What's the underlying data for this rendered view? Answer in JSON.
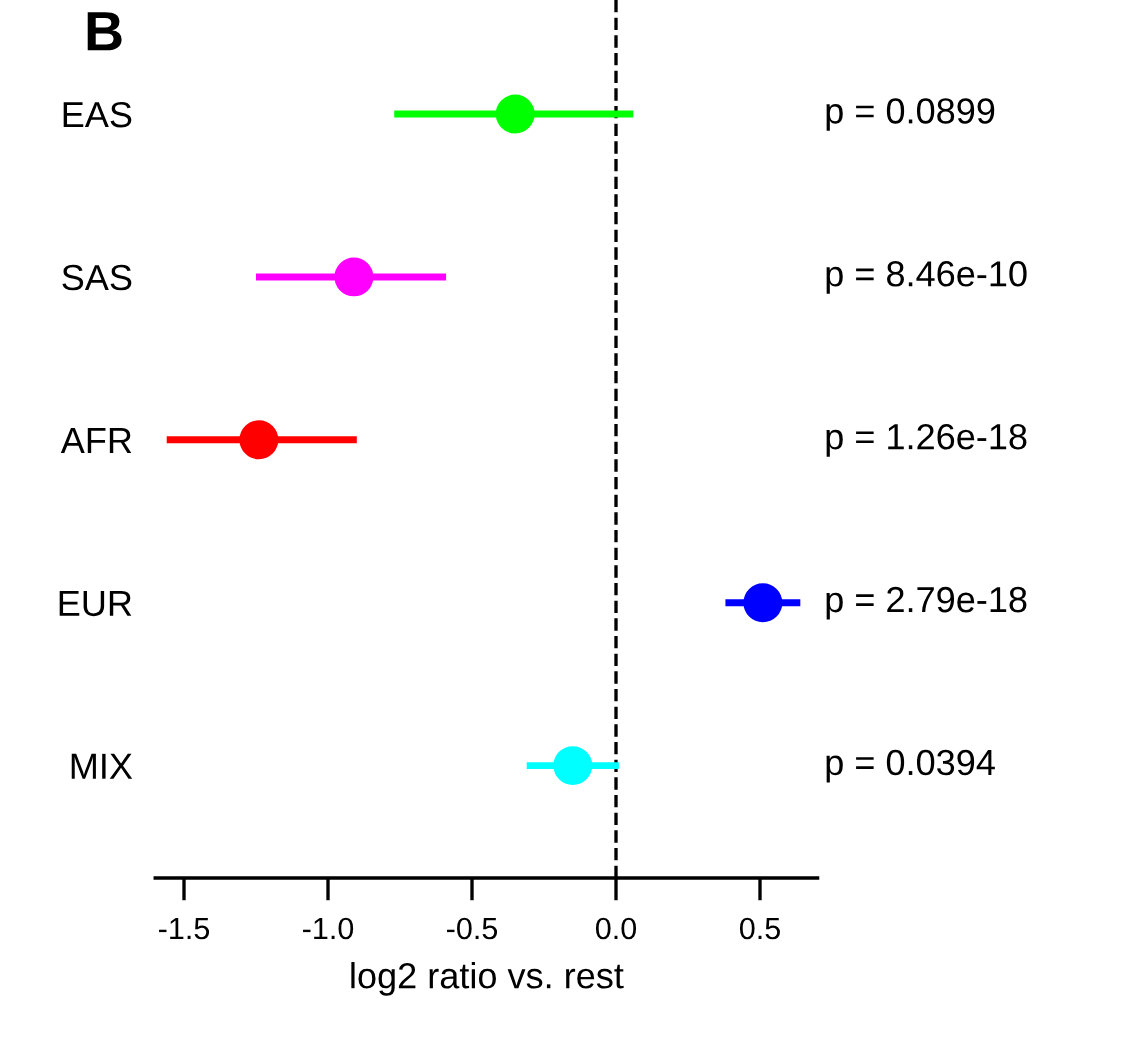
{
  "chart_data": {
    "type": "scatter",
    "title": "B",
    "xlabel": "log2 ratio vs. rest",
    "orientation": "horizontal",
    "categories": [
      "EAS",
      "SAS",
      "AFR",
      "EUR",
      "MIX"
    ],
    "values": [
      -0.35,
      -0.91,
      -1.24,
      0.51,
      -0.15
    ],
    "errors": [
      [
        -0.77,
        0.06
      ],
      [
        -1.25,
        -0.59
      ],
      [
        -1.56,
        -0.9
      ],
      [
        0.38,
        0.64
      ],
      [
        -0.31,
        0.01
      ]
    ],
    "colors": [
      "#00ff00",
      "#ff00ff",
      "#ff0000",
      "#0000ff",
      "#00ffff"
    ],
    "marker": "circle",
    "xlim": [
      -1.6,
      0.7
    ],
    "xticks": [
      -1.5,
      {
        "value": -1,
        "label": "-1.0"
      },
      -0.5,
      {
        "value": 0,
        "label": "0.0"
      },
      0.5
    ],
    "ref_lines": [
      {
        "axis": "x",
        "value": 0,
        "color": "#000000",
        "line_style": "dashed"
      }
    ],
    "annotations": [
      "p = 0.0899",
      "p = 8.46e-10",
      "p = 1.26e-18",
      "p = 2.79e-18",
      "p = 0.0394"
    ],
    "grid": false
  }
}
